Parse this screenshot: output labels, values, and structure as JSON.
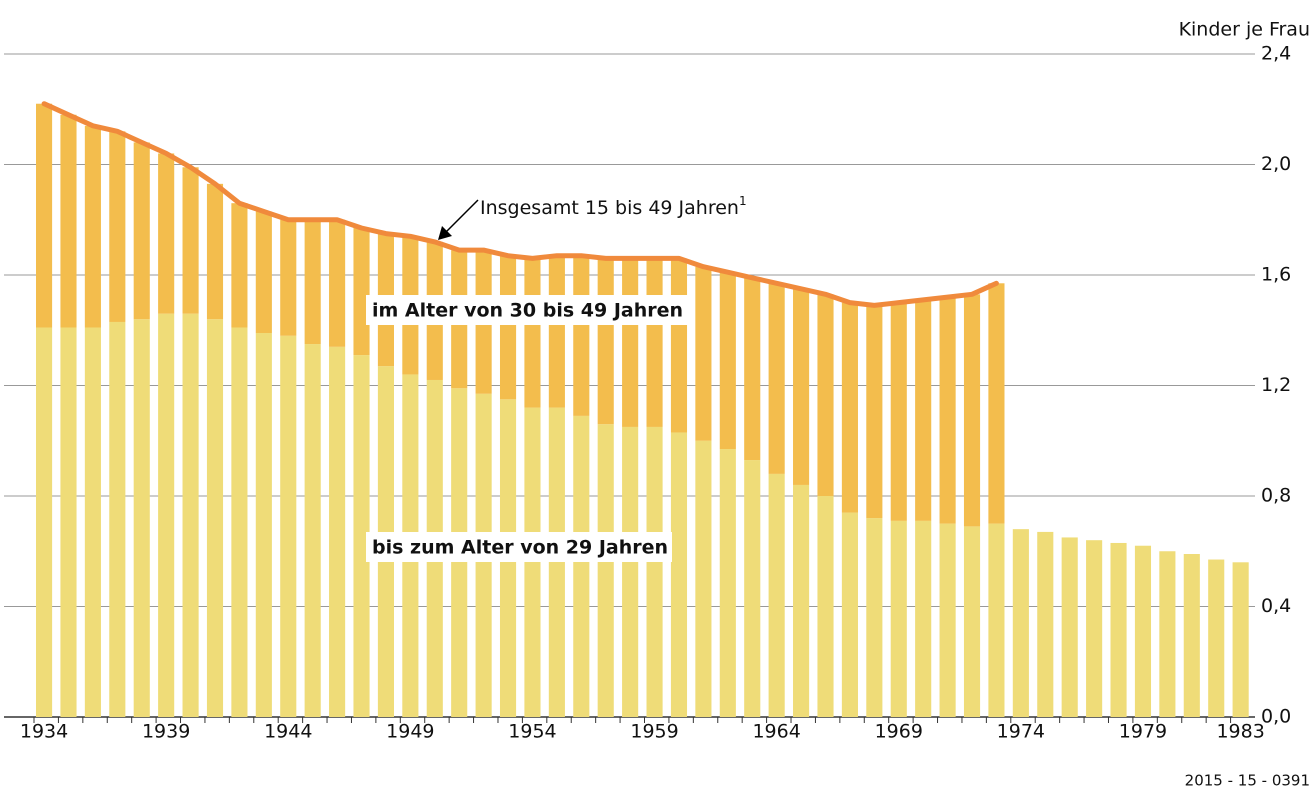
{
  "chart_data": {
    "type": "bar",
    "stacked": true,
    "y_axis_label": "Kinder je Frau",
    "source": "2015 - 15 - 0391",
    "categories": [
      "1934",
      null,
      null,
      null,
      null,
      "1939",
      null,
      null,
      null,
      null,
      "1944",
      null,
      null,
      null,
      null,
      "1949",
      null,
      null,
      null,
      null,
      "1954",
      null,
      null,
      null,
      null,
      "1959",
      null,
      null,
      null,
      null,
      "1964",
      null,
      null,
      null,
      null,
      "1969",
      null,
      null,
      null,
      null,
      "1974",
      null,
      null,
      null,
      null,
      "1979",
      null,
      null,
      null,
      "1983"
    ],
    "series": [
      {
        "name": "bis zum Alter von 29 Jahren",
        "type": "bar",
        "color": "#efdc78",
        "values": [
          1.41,
          1.41,
          1.41,
          1.43,
          1.44,
          1.46,
          1.46,
          1.44,
          1.41,
          1.39,
          1.38,
          1.35,
          1.34,
          1.31,
          1.27,
          1.24,
          1.22,
          1.19,
          1.17,
          1.15,
          1.12,
          1.12,
          1.09,
          1.06,
          1.05,
          1.05,
          1.03,
          1.0,
          0.97,
          0.93,
          0.88,
          0.84,
          0.8,
          0.74,
          0.72,
          0.71,
          0.71,
          0.7,
          0.69,
          0.7,
          0.68,
          0.67,
          0.65,
          0.64,
          0.63,
          0.62,
          0.6,
          0.59,
          0.57,
          0.56
        ]
      },
      {
        "name": "im Alter von 30 bis 49 Jahren",
        "type": "bar",
        "color": "#f3bd4d",
        "values": [
          0.81,
          0.77,
          0.73,
          0.69,
          0.64,
          0.58,
          0.53,
          0.49,
          0.45,
          0.44,
          0.42,
          0.45,
          0.46,
          0.46,
          0.48,
          0.5,
          0.5,
          0.5,
          0.52,
          0.52,
          0.54,
          0.55,
          0.58,
          0.6,
          0.61,
          0.61,
          0.63,
          0.63,
          0.64,
          0.66,
          0.69,
          0.71,
          0.73,
          0.76,
          0.77,
          0.79,
          0.8,
          0.82,
          0.84,
          0.87,
          null,
          null,
          null,
          null,
          null,
          null,
          null,
          null,
          null,
          null
        ]
      },
      {
        "name": "Insgesamt 15 bis 49 Jahren",
        "note_marker": "1",
        "type": "line",
        "color": "#f08a3c",
        "values": [
          2.22,
          2.18,
          2.14,
          2.12,
          2.08,
          2.04,
          1.99,
          1.93,
          1.86,
          1.83,
          1.8,
          1.8,
          1.8,
          1.77,
          1.75,
          1.74,
          1.72,
          1.69,
          1.69,
          1.67,
          1.66,
          1.67,
          1.67,
          1.66,
          1.66,
          1.66,
          1.66,
          1.63,
          1.61,
          1.59,
          1.57,
          1.55,
          1.53,
          1.5,
          1.49,
          1.5,
          1.51,
          1.52,
          1.53,
          1.57,
          null,
          null,
          null,
          null,
          null,
          null,
          null,
          null,
          null,
          null
        ]
      }
    ],
    "ylim": [
      0,
      2.4
    ],
    "yticks": [
      {
        "value": 0,
        "label": "0,0"
      },
      {
        "value": 0.4,
        "label": "0,4"
      },
      {
        "value": 0.8,
        "label": "0,8"
      },
      {
        "value": 1.2,
        "label": "1,2"
      },
      {
        "value": 1.6,
        "label": "1,6"
      },
      {
        "value": 2.0,
        "label": "2,0"
      },
      {
        "value": 2.4,
        "label": "2,4"
      }
    ],
    "grid": true
  }
}
